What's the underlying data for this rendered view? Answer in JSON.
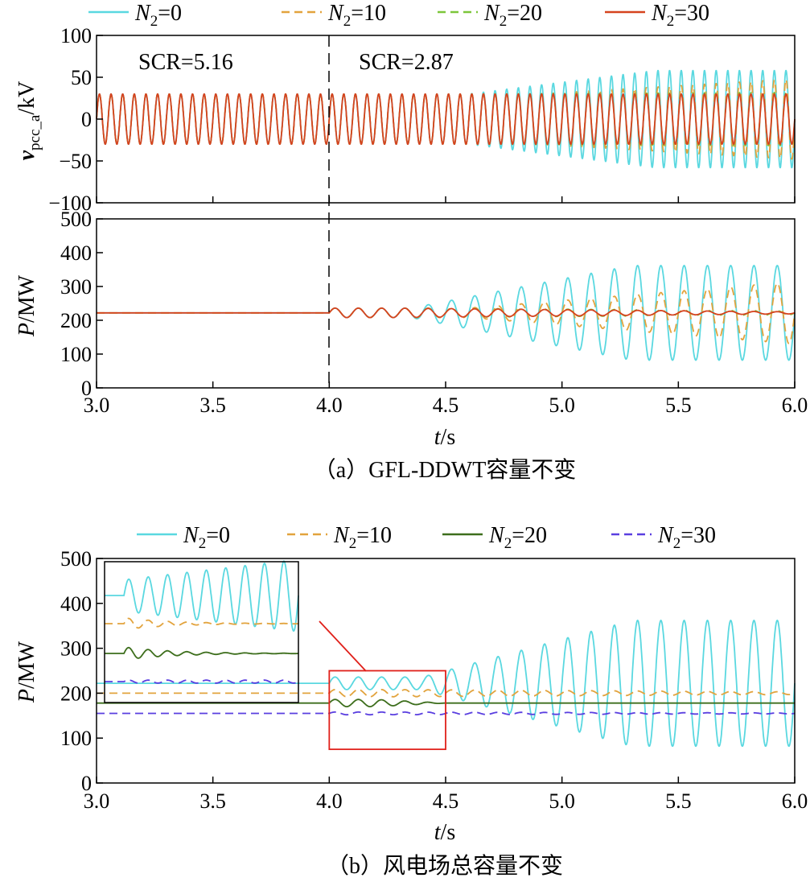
{
  "chart_data": [
    {
      "id": "a",
      "type": "line",
      "caption": "（a）GFL-DDWT容量不变",
      "xlabel": "t/s",
      "xlim": [
        3.0,
        6.0
      ],
      "xticks": [
        "3.0",
        "3.5",
        "4.0",
        "4.5",
        "5.0",
        "5.5",
        "6.0"
      ],
      "legend": [
        {
          "label": "N2=0",
          "color": "#5ad8e0",
          "dash": "solid"
        },
        {
          "label": "N2=10",
          "color": "#e2a33d",
          "dash": "dashed"
        },
        {
          "label": "N2=20",
          "color": "#7cc63a",
          "dash": "dashed"
        },
        {
          "label": "N2=30",
          "color": "#d6431f",
          "dash": "solid"
        }
      ],
      "event_time": 4.0,
      "annotations": [
        "SCR=5.16",
        "SCR=2.87"
      ],
      "subplots": [
        {
          "ylabel": "v",
          "ylabel_sub": "pcc_a",
          "ylabel_unit": "/kV",
          "ylim": [
            -100,
            100
          ],
          "yticks": [
            "100",
            "50",
            "0",
            "−50",
            "−100"
          ],
          "ytick_values": [
            100,
            50,
            0,
            -50,
            -100
          ],
          "series": [
            {
              "name": "N2=0",
              "kind": "sine",
              "base": 0,
              "amp_pre": 30,
              "amp_post_start": 30,
              "amp_end": 58,
              "grow_start": 4.6,
              "grow_end": 5.4
            },
            {
              "name": "N2=10",
              "kind": "sine",
              "base": 0,
              "amp_pre": 30,
              "amp_post_start": 30,
              "amp_end": 48,
              "grow_start": 4.9,
              "grow_end": 6.0
            },
            {
              "name": "N2=20",
              "kind": "sine",
              "base": 0,
              "amp_pre": 30,
              "amp_post_start": 30,
              "amp_end": 32,
              "grow_start": 4.5,
              "grow_end": 6.0
            },
            {
              "name": "N2=30",
              "kind": "sine",
              "base": 0,
              "amp_pre": 30,
              "amp_post_start": 30,
              "amp_end": 30,
              "grow_start": 4.5,
              "grow_end": 6.0
            }
          ]
        },
        {
          "ylabel": "P",
          "ylabel_sub": "",
          "ylabel_unit": "/MW",
          "ylim": [
            0,
            500
          ],
          "yticks": [
            "500",
            "400",
            "300",
            "200",
            "100",
            "0"
          ],
          "ytick_values": [
            500,
            400,
            300,
            200,
            100,
            0
          ],
          "series": [
            {
              "name": "N2=0",
              "kind": "osc",
              "base": 222,
              "amp_pre": 0,
              "amp_post_start": 14,
              "amp_end": 140,
              "grow_start": 4.35,
              "grow_end": 5.3
            },
            {
              "name": "N2=10",
              "kind": "osc",
              "base": 222,
              "amp_pre": 0,
              "amp_post_start": 14,
              "amp_end": 92,
              "grow_start": 4.6,
              "grow_end": 6.0
            },
            {
              "name": "N2=20",
              "kind": "osc",
              "base": 222,
              "amp_pre": 0,
              "amp_post_start": 14,
              "amp_end": 6,
              "grow_start": 4.4,
              "grow_end": 6.0
            },
            {
              "name": "N2=30",
              "kind": "osc",
              "base": 222,
              "amp_pre": 0,
              "amp_post_start": 14,
              "amp_end": 3,
              "grow_start": 4.3,
              "grow_end": 6.0
            }
          ]
        }
      ]
    },
    {
      "id": "b",
      "type": "line",
      "caption": "（b）风电场总容量不变",
      "xlabel": "t/s",
      "xlim": [
        3.0,
        6.0
      ],
      "xticks": [
        "3.0",
        "3.5",
        "4.0",
        "4.5",
        "5.0",
        "5.5",
        "6.0"
      ],
      "ylabel": "P",
      "ylabel_unit": "/MW",
      "ylim": [
        0,
        500
      ],
      "yticks": [
        "500",
        "400",
        "300",
        "200",
        "100",
        "0"
      ],
      "ytick_values": [
        500,
        400,
        300,
        200,
        100,
        0
      ],
      "legend": [
        {
          "label": "N2=0",
          "color": "#5ad8e0",
          "dash": "solid"
        },
        {
          "label": "N2=10",
          "color": "#e2a33d",
          "dash": "dashed"
        },
        {
          "label": "N2=20",
          "color": "#3d6e1c",
          "dash": "solid"
        },
        {
          "label": "N2=30",
          "color": "#5a3fe0",
          "dash": "dashed"
        }
      ],
      "zoom_box": {
        "x": [
          4.0,
          4.5
        ],
        "y": [
          75,
          250
        ]
      },
      "series": [
        {
          "name": "N2=0",
          "kind": "osc",
          "base": 222,
          "amp_pre": 0,
          "amp_post_start": 14,
          "amp_end": 140,
          "grow_start": 4.4,
          "grow_end": 5.3
        },
        {
          "name": "N2=10",
          "kind": "osc",
          "base": 200,
          "amp_pre": 0,
          "amp_post_start": 8,
          "amp_end": 3,
          "grow_start": 4.3,
          "grow_end": 6.0
        },
        {
          "name": "N2=20",
          "kind": "osc",
          "base": 178,
          "amp_pre": 0,
          "amp_post_start": 8,
          "amp_end": 0,
          "grow_start": 4.2,
          "grow_end": 4.5
        },
        {
          "name": "N2=30",
          "kind": "osc",
          "base": 155,
          "amp_pre": 0,
          "amp_post_start": 3,
          "amp_end": 1,
          "grow_start": 4.2,
          "grow_end": 6.0
        }
      ]
    }
  ]
}
